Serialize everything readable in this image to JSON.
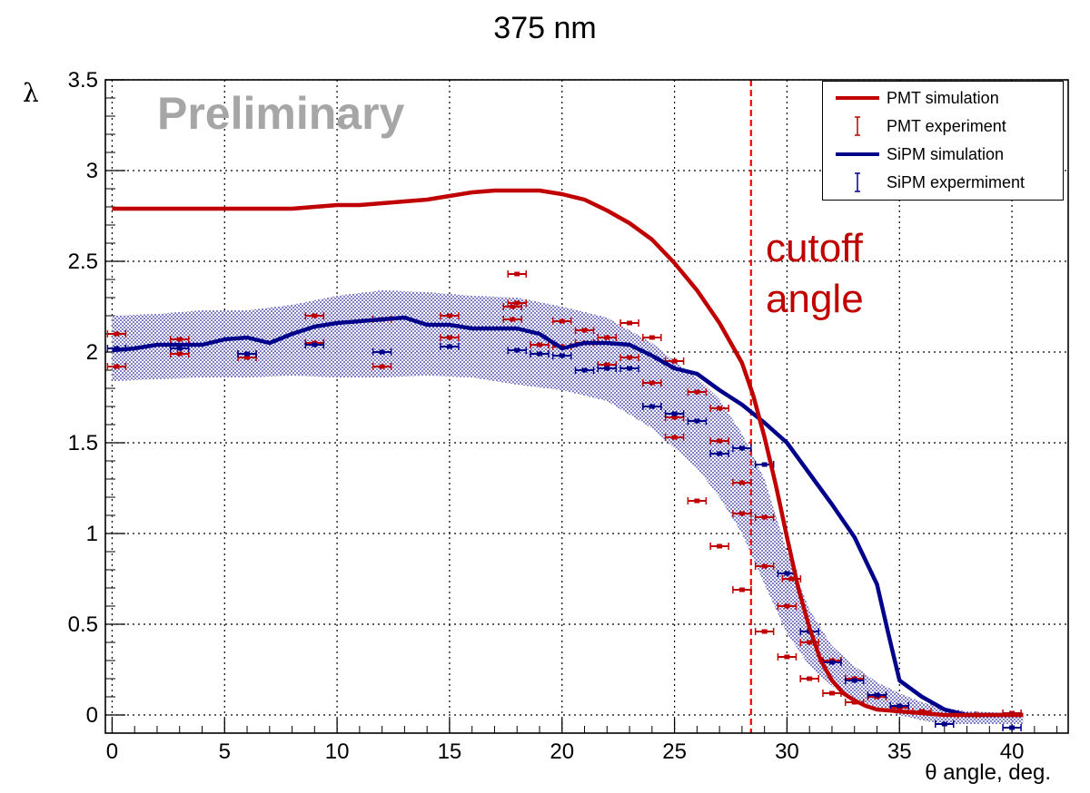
{
  "chart_data": {
    "type": "line",
    "title": "375 nm",
    "xlabel": "θ angle, deg.",
    "ylabel": "λ",
    "xlim": [
      -0.3,
      42.5
    ],
    "ylim": [
      -0.1,
      3.5
    ],
    "x_ticks": [
      "0",
      "5",
      "10",
      "15",
      "20",
      "25",
      "30",
      "35",
      "40"
    ],
    "y_ticks": [
      "0",
      "0.5",
      "1",
      "1.5",
      "2",
      "2.5",
      "3",
      "3.5"
    ],
    "grid": true,
    "legend_position": "top-right",
    "watermark": "Preliminary",
    "annotation": {
      "lines": [
        "cutoff",
        "angle"
      ],
      "x": 28.4
    },
    "colors": {
      "pmt": "#c00000",
      "sipm": "#00008b",
      "band": "#00008b",
      "cutoff": "#ff0000"
    },
    "series": [
      {
        "name": "PMT simulation",
        "kind": "line",
        "color": "#c00000",
        "x": [
          0,
          1,
          2,
          3,
          4,
          5,
          6,
          7,
          8,
          9,
          10,
          11,
          12,
          13,
          14,
          15,
          16,
          17,
          18,
          19,
          20,
          21,
          22,
          23,
          24,
          25,
          26,
          27,
          28,
          28.5,
          29,
          29.5,
          30,
          30.5,
          31,
          31.5,
          32,
          32.5,
          33,
          33.5,
          34,
          35,
          36,
          37,
          38,
          39,
          40,
          40.5
        ],
        "y": [
          2.79,
          2.79,
          2.79,
          2.79,
          2.79,
          2.79,
          2.79,
          2.79,
          2.79,
          2.8,
          2.81,
          2.81,
          2.82,
          2.83,
          2.84,
          2.86,
          2.88,
          2.89,
          2.89,
          2.89,
          2.87,
          2.84,
          2.78,
          2.71,
          2.62,
          2.49,
          2.34,
          2.16,
          1.94,
          1.76,
          1.53,
          1.27,
          0.98,
          0.7,
          0.48,
          0.3,
          0.19,
          0.12,
          0.08,
          0.05,
          0.03,
          0.02,
          0.01,
          0.0,
          0.0,
          0.0,
          0.0,
          0.0
        ]
      },
      {
        "name": "PMT experiment",
        "kind": "errorbar",
        "color": "#c00000",
        "points": [
          [
            0.2,
            2.1
          ],
          [
            0.2,
            1.92
          ],
          [
            3.0,
            2.07
          ],
          [
            3.0,
            1.99
          ],
          [
            6.0,
            1.99
          ],
          [
            6.0,
            1.97
          ],
          [
            9.0,
            2.05
          ],
          [
            9.0,
            2.2
          ],
          [
            12.0,
            2.18
          ],
          [
            12.0,
            1.92
          ],
          [
            15.0,
            2.2
          ],
          [
            15.0,
            2.08
          ],
          [
            18.0,
            2.43
          ],
          [
            18.0,
            2.27
          ],
          [
            17.8,
            2.25
          ],
          [
            17.8,
            2.18
          ],
          [
            19.0,
            2.04
          ],
          [
            20.0,
            2.17
          ],
          [
            20.0,
            2.03
          ],
          [
            21.0,
            2.12
          ],
          [
            21.0,
            2.05
          ],
          [
            22.0,
            2.08
          ],
          [
            22.0,
            1.93
          ],
          [
            23.0,
            2.16
          ],
          [
            23.0,
            1.97
          ],
          [
            24.0,
            2.08
          ],
          [
            24.0,
            1.83
          ],
          [
            24.0,
            1.7
          ],
          [
            25.0,
            1.95
          ],
          [
            25.0,
            1.64
          ],
          [
            25.0,
            1.53
          ],
          [
            26.0,
            1.78
          ],
          [
            26.0,
            1.18
          ],
          [
            27.0,
            1.69
          ],
          [
            27.0,
            1.51
          ],
          [
            27.0,
            0.93
          ],
          [
            28.0,
            1.28
          ],
          [
            28.0,
            1.11
          ],
          [
            28.0,
            0.69
          ],
          [
            29.0,
            1.09
          ],
          [
            29.0,
            0.82
          ],
          [
            29.0,
            0.46
          ],
          [
            30.0,
            0.6
          ],
          [
            30.0,
            0.32
          ],
          [
            30.2,
            0.75
          ],
          [
            31.0,
            0.4
          ],
          [
            31.0,
            0.2
          ],
          [
            32.0,
            0.3
          ],
          [
            32.0,
            0.12
          ],
          [
            33.0,
            0.2
          ],
          [
            33.0,
            0.07
          ],
          [
            34.0,
            0.1
          ],
          [
            35.0,
            0.04
          ],
          [
            36.0,
            0.02
          ],
          [
            38.0,
            0.0
          ],
          [
            40.0,
            0.01
          ]
        ]
      },
      {
        "name": "SiPM simulation",
        "kind": "line",
        "color": "#00008b",
        "x": [
          0,
          1,
          2,
          3,
          4,
          5,
          6,
          7,
          8,
          9,
          10,
          11,
          12,
          13,
          14,
          15,
          16,
          17,
          18,
          19,
          20,
          21,
          22,
          23,
          24,
          25,
          26,
          27,
          28,
          29,
          30,
          31,
          32,
          33,
          34,
          34.5,
          35,
          36,
          37,
          38,
          39,
          40,
          40.5
        ],
        "y": [
          2.01,
          2.02,
          2.04,
          2.04,
          2.04,
          2.07,
          2.08,
          2.05,
          2.1,
          2.14,
          2.16,
          2.17,
          2.18,
          2.19,
          2.15,
          2.15,
          2.13,
          2.13,
          2.13,
          2.1,
          2.02,
          2.05,
          2.05,
          2.04,
          1.98,
          1.91,
          1.88,
          1.79,
          1.71,
          1.61,
          1.5,
          1.33,
          1.16,
          0.98,
          0.72,
          0.45,
          0.19,
          0.1,
          0.03,
          0.0,
          0.0,
          0.0,
          0.0
        ]
      },
      {
        "name": "SiPM expermiment",
        "kind": "errorbar",
        "color": "#00008b",
        "points": [
          [
            0.2,
            2.02
          ],
          [
            3.0,
            2.02
          ],
          [
            6.0,
            1.99
          ],
          [
            9.0,
            2.04
          ],
          [
            12.0,
            2.0
          ],
          [
            15.0,
            2.03
          ],
          [
            18.0,
            2.01
          ],
          [
            19.0,
            1.99
          ],
          [
            20.0,
            1.98
          ],
          [
            21.0,
            1.9
          ],
          [
            22.0,
            1.91
          ],
          [
            23.0,
            1.91
          ],
          [
            24.0,
            1.7
          ],
          [
            25.0,
            1.66
          ],
          [
            26.0,
            1.62
          ],
          [
            27.0,
            1.44
          ],
          [
            28.0,
            1.47
          ],
          [
            29.0,
            1.38
          ],
          [
            30.0,
            0.78
          ],
          [
            31.0,
            0.46
          ],
          [
            32.0,
            0.29
          ],
          [
            33.0,
            0.19
          ],
          [
            34.0,
            0.11
          ],
          [
            35.0,
            0.05
          ],
          [
            37.0,
            -0.05
          ],
          [
            40.0,
            -0.07
          ]
        ]
      }
    ],
    "band": {
      "name": "SiPM simulation uncertainty",
      "color": "#00008b",
      "x": [
        0,
        2,
        4,
        6,
        8,
        10,
        12,
        14,
        16,
        18,
        20,
        22,
        24,
        25,
        26,
        27,
        28,
        29,
        30,
        31,
        32,
        33,
        34,
        35,
        36,
        37,
        38,
        40,
        40.5
      ],
      "upper": [
        2.2,
        2.21,
        2.23,
        2.23,
        2.26,
        2.31,
        2.34,
        2.33,
        2.31,
        2.3,
        2.25,
        2.19,
        2.05,
        1.95,
        1.86,
        1.74,
        1.55,
        1.3,
        0.9,
        0.58,
        0.38,
        0.27,
        0.18,
        0.12,
        0.07,
        0.04,
        0.02,
        0.01,
        0.01
      ],
      "lower": [
        1.84,
        1.85,
        1.86,
        1.86,
        1.87,
        1.86,
        1.86,
        1.87,
        1.86,
        1.82,
        1.79,
        1.73,
        1.58,
        1.47,
        1.36,
        1.2,
        1.0,
        0.72,
        0.45,
        0.27,
        0.16,
        0.09,
        0.04,
        0.0,
        -0.03,
        -0.05,
        -0.05,
        -0.05,
        -0.05
      ]
    }
  }
}
